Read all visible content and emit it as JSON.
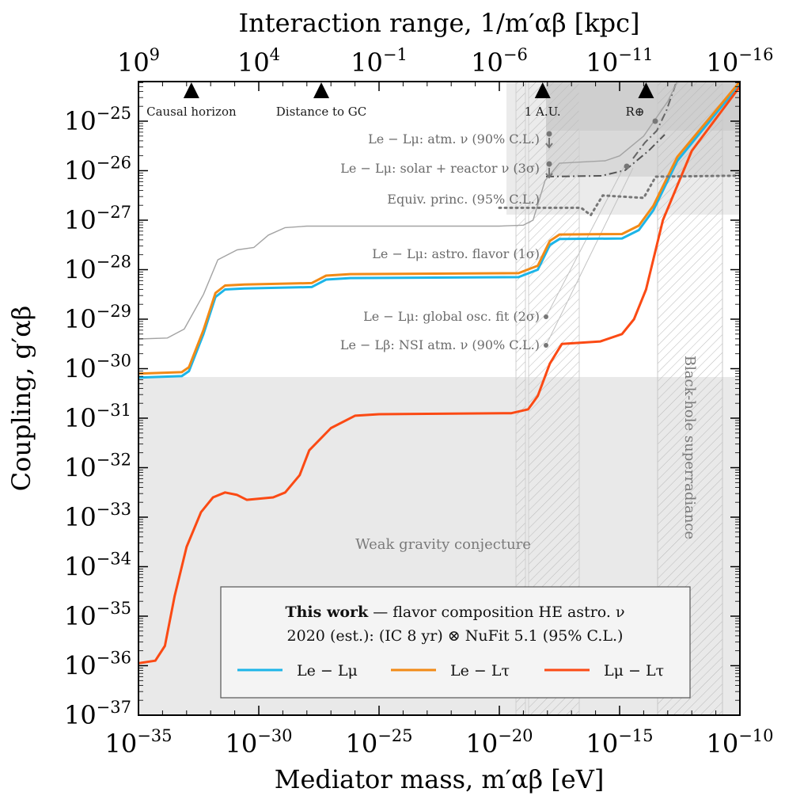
{
  "chart_data": {
    "type": "line",
    "xlabel": "Mediator mass, m′αβ [eV]",
    "ylabel": "Coupling, g′αβ",
    "top_xlabel": "Interaction range, 1/m′αβ [kpc]",
    "xscale": "log",
    "yscale": "log",
    "xlim_log10": [
      -35,
      -10
    ],
    "ylim_log10": [
      -37,
      -24.2
    ],
    "x_ticks": [
      "10−35",
      "10−30",
      "10−25",
      "10−20",
      "10−15",
      "10−10"
    ],
    "y_ticks": [
      "10−37",
      "10−36",
      "10−35",
      "10−34",
      "10−33",
      "10−32",
      "10−31",
      "10−30",
      "10−29",
      "10−28",
      "10−27",
      "10−26",
      "10−25"
    ],
    "top_ticks": [
      "109",
      "104",
      "10−1",
      "10−6",
      "10−11",
      "10−16"
    ],
    "markers": [
      {
        "label": "Causal horizon",
        "log10_mass": -32.8
      },
      {
        "label": "Distance to GC",
        "log10_mass": -27.4
      },
      {
        "label": "1 A.U.",
        "log10_mass": -18.2
      },
      {
        "label": "R⊕",
        "log10_mass": -13.9
      }
    ],
    "series": [
      {
        "name": "Le − Lμ",
        "color": "#1cb5e8",
        "points_log10": [
          [
            -35,
            -30.18
          ],
          [
            -33.2,
            -30.15
          ],
          [
            -32.9,
            -30.05
          ],
          [
            -32.3,
            -29.3
          ],
          [
            -31.8,
            -28.55
          ],
          [
            -31.4,
            -28.4
          ],
          [
            -30.6,
            -28.38
          ],
          [
            -27.8,
            -28.35
          ],
          [
            -27.2,
            -28.2
          ],
          [
            -26.2,
            -28.17
          ],
          [
            -19.2,
            -28.15
          ],
          [
            -18.4,
            -28.0
          ],
          [
            -17.9,
            -27.5
          ],
          [
            -17.5,
            -27.38
          ],
          [
            -14.9,
            -27.37
          ],
          [
            -14.2,
            -27.2
          ],
          [
            -13.6,
            -26.8
          ],
          [
            -12.6,
            -25.8
          ],
          [
            -10,
            -24.25
          ]
        ]
      },
      {
        "name": "Le − Lτ",
        "color": "#f28a16",
        "points_log10": [
          [
            -35,
            -30.1
          ],
          [
            -33.2,
            -30.07
          ],
          [
            -32.9,
            -29.97
          ],
          [
            -32.3,
            -29.22
          ],
          [
            -31.8,
            -28.47
          ],
          [
            -31.4,
            -28.32
          ],
          [
            -30.6,
            -28.3
          ],
          [
            -27.8,
            -28.27
          ],
          [
            -27.2,
            -28.12
          ],
          [
            -26.2,
            -28.09
          ],
          [
            -19.2,
            -28.07
          ],
          [
            -18.4,
            -27.92
          ],
          [
            -17.9,
            -27.42
          ],
          [
            -17.5,
            -27.29
          ],
          [
            -14.9,
            -27.28
          ],
          [
            -14.2,
            -27.11
          ],
          [
            -13.6,
            -26.71
          ],
          [
            -12.6,
            -25.72
          ],
          [
            -10,
            -24.2
          ]
        ]
      },
      {
        "name": "Lμ − Lτ",
        "color": "#fb4a14",
        "points_log10": [
          [
            -35,
            -35.95
          ],
          [
            -34.3,
            -35.9
          ],
          [
            -33.9,
            -35.6
          ],
          [
            -33.5,
            -34.6
          ],
          [
            -33.0,
            -33.6
          ],
          [
            -32.4,
            -32.9
          ],
          [
            -31.9,
            -32.6
          ],
          [
            -31.4,
            -32.5
          ],
          [
            -30.9,
            -32.55
          ],
          [
            -30.5,
            -32.65
          ],
          [
            -29.4,
            -32.6
          ],
          [
            -28.9,
            -32.5
          ],
          [
            -28.3,
            -32.15
          ],
          [
            -27.9,
            -31.65
          ],
          [
            -27.0,
            -31.2
          ],
          [
            -26.0,
            -30.95
          ],
          [
            -25.0,
            -30.92
          ],
          [
            -19.5,
            -30.9
          ],
          [
            -18.8,
            -30.82
          ],
          [
            -18.4,
            -30.55
          ],
          [
            -17.9,
            -29.9
          ],
          [
            -17.4,
            -29.5
          ],
          [
            -15.8,
            -29.45
          ],
          [
            -14.9,
            -29.3
          ],
          [
            -14.4,
            -29.0
          ],
          [
            -13.9,
            -28.4
          ],
          [
            -13.2,
            -27.0
          ],
          [
            -12.0,
            -25.6
          ],
          [
            -10,
            -24.3
          ]
        ]
      },
      {
        "name": "Le − Lμ: astro. flavor (1σ)",
        "color": "#a3a3a3",
        "points_log10": [
          [
            -35,
            -29.4
          ],
          [
            -33.8,
            -29.38
          ],
          [
            -33.1,
            -29.2
          ],
          [
            -32.3,
            -28.5
          ],
          [
            -31.7,
            -27.8
          ],
          [
            -30.9,
            -27.6
          ],
          [
            -30.2,
            -27.55
          ],
          [
            -29.6,
            -27.3
          ],
          [
            -28.9,
            -27.15
          ],
          [
            -28.0,
            -27.12
          ],
          [
            -20,
            -27.12
          ],
          [
            -19.0,
            -27.1
          ],
          [
            -18.6,
            -27.0
          ],
          [
            -18.1,
            -26.2
          ],
          [
            -17.5,
            -25.85
          ],
          [
            -15.6,
            -25.8
          ],
          [
            -15.0,
            -25.7
          ],
          [
            -14.0,
            -25.3
          ],
          [
            -13.0,
            -24.6
          ],
          [
            -12.6,
            -24.2
          ]
        ]
      },
      {
        "name": "Equiv. princ. (95% C.L.)",
        "color": "#777777",
        "points_log10": [
          [
            -20,
            -26.75
          ],
          [
            -16.6,
            -26.75
          ],
          [
            -16.2,
            -26.9
          ],
          [
            -15.7,
            -26.5
          ],
          [
            -14.0,
            -26.55
          ],
          [
            -13.5,
            -26.12
          ],
          [
            -10,
            -26.1
          ]
        ]
      }
    ],
    "constraints": [
      {
        "label": "Le − Lμ: atm. ν (90% C.L.)",
        "log10_coupling": -25.1
      },
      {
        "label": "Le − Lμ: solar + reactor ν (3σ)",
        "log10_coupling": -25.8
      },
      {
        "label": "Equiv. princ. (95% C.L.)",
        "log10_coupling": -26.5
      },
      {
        "label": "Le − Lμ: astro. flavor (1σ)",
        "log10_coupling": -27.7
      },
      {
        "label": "Le − Lμ: global osc. fit (2σ)",
        "log10_coupling": -28.9
      },
      {
        "label": "Le − Lβ: NSI atm. ν (90% C.L.)",
        "log10_coupling": -29.35
      }
    ],
    "regions": [
      {
        "label": "Weak gravity conjecture",
        "log10_coupling_max": -30.05
      },
      {
        "label": "Black-hole superradiance",
        "log10_mass_range": [
          -13.9,
          -11.2
        ]
      }
    ],
    "legend": {
      "title_bold": "This work",
      "title_rest": " — flavor composition HE astro. ν",
      "subtitle": "2020 (est.): (IC 8 yr) ⊗ NuFit 5.1 (95% C.L.)",
      "entries": [
        "Le − Lμ",
        "Le − Lτ",
        "Lμ − Lτ"
      ],
      "placement": "bottom-right"
    }
  }
}
